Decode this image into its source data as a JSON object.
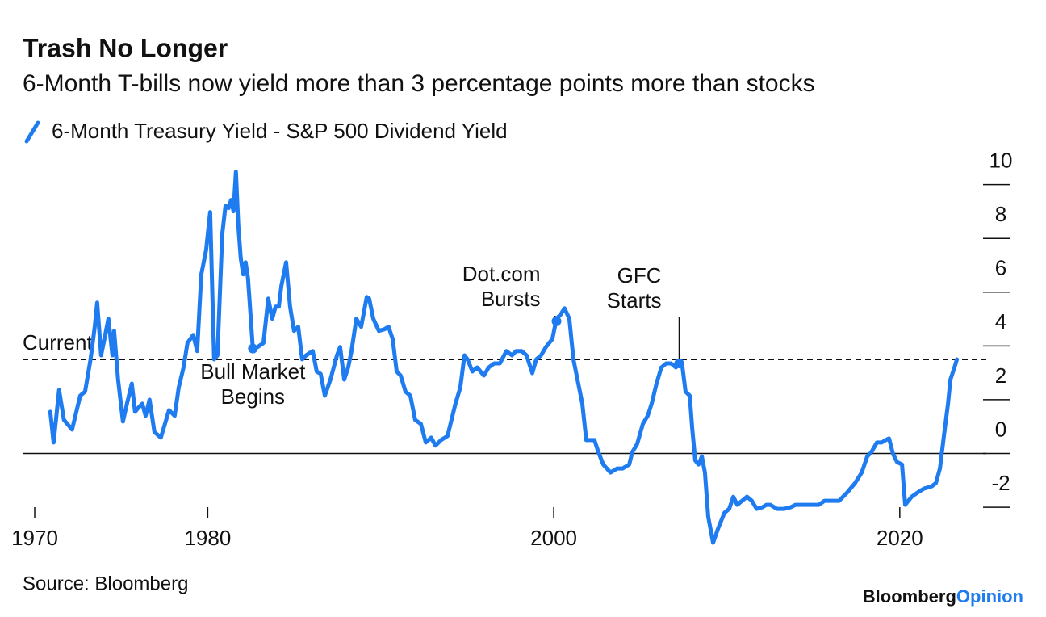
{
  "chart_data": {
    "type": "line",
    "title": "Trash No Longer",
    "subtitle": "6-Month T-bills now yield more than 3 percentage points more than stocks",
    "source": "Source: Bloomberg",
    "brand": [
      "Bloomberg",
      "Opinion"
    ],
    "xlim": [
      1969.3,
      2025
    ],
    "xticks": [
      1970,
      1980,
      2000,
      2020
    ],
    "ylim": [
      -3.5,
      10.5
    ],
    "yticks": [
      -2,
      0,
      2,
      4,
      6,
      8,
      10
    ],
    "reference_line": {
      "label": "Current",
      "value": 3.5
    },
    "x": [
      1970.9,
      1971.09,
      1971.41,
      1971.69,
      1972.16,
      1972.63,
      1972.91,
      1973.23,
      1973.47,
      1973.61,
      1973.84,
      1974.03,
      1974.26,
      1974.49,
      1974.59,
      1974.82,
      1975.1,
      1975.33,
      1975.61,
      1975.8,
      1975.99,
      1976.22,
      1976.41,
      1976.64,
      1976.92,
      1977.29,
      1977.76,
      1978.09,
      1978.32,
      1978.6,
      1978.83,
      1979.16,
      1979.39,
      1979.63,
      1979.91,
      1980.14,
      1980.37,
      1980.56,
      1980.84,
      1981.03,
      1981.21,
      1981.35,
      1981.49,
      1981.63,
      1981.77,
      1981.91,
      1982.05,
      1982.19,
      1982.33,
      1982.61,
      1982.89,
      1983.22,
      1983.5,
      1983.73,
      1983.92,
      1984.11,
      1984.25,
      1984.53,
      1984.76,
      1984.99,
      1985.23,
      1985.46,
      1985.69,
      1986.07,
      1986.3,
      1986.53,
      1986.77,
      1987.09,
      1987.47,
      1987.65,
      1987.89,
      1988.12,
      1988.31,
      1988.59,
      1988.87,
      1989.19,
      1989.33,
      1989.57,
      1989.89,
      1990.22,
      1990.45,
      1990.69,
      1990.92,
      1991.15,
      1991.43,
      1991.71,
      1991.99,
      1992.32,
      1992.6,
      1992.92,
      1993.16,
      1993.49,
      1993.86,
      1994.09,
      1994.32,
      1994.6,
      1994.84,
      1995.02,
      1995.3,
      1995.58,
      1995.96,
      1996.24,
      1996.56,
      1996.89,
      1997.26,
      1997.59,
      1997.82,
      1998.15,
      1998.43,
      1998.76,
      1998.99,
      1999.27,
      1999.55,
      1999.92,
      2000.16,
      2000.39,
      2000.62,
      2000.9,
      2001.14,
      2001.42,
      2001.65,
      2001.88,
      2002.35,
      2002.58,
      2002.86,
      2003.28,
      2003.66,
      2003.98,
      2004.36,
      2004.54,
      2004.82,
      2005.15,
      2005.43,
      2005.66,
      2005.94,
      2006.22,
      2006.5,
      2006.78,
      2007.06,
      2007.3,
      2007.44,
      2007.62,
      2007.86,
      2008.0,
      2008.18,
      2008.37,
      2008.56,
      2008.74,
      2008.93,
      2009.21,
      2009.49,
      2009.86,
      2010.14,
      2010.38,
      2010.61,
      2010.89,
      2011.17,
      2011.45,
      2011.73,
      2012.06,
      2012.29,
      2012.52,
      2012.9,
      2013.32,
      2013.69,
      2013.97,
      2014.3,
      2014.62,
      2015.0,
      2015.32,
      2015.65,
      2016.02,
      2016.49,
      2016.95,
      2017.42,
      2017.8,
      2018.12,
      2018.36,
      2018.68,
      2018.96,
      2019.19,
      2019.38,
      2019.61,
      2019.85,
      2020.13,
      2020.31,
      2020.69,
      2021.01,
      2021.39,
      2021.85,
      2022.09,
      2022.32,
      2022.55,
      2022.79,
      2022.93,
      2023.16,
      2023.3
    ],
    "series": [
      {
        "name": "6-Month Treasury Yield - S&P 500 Dividend Yield",
        "color": "#1f7cf0",
        "values": [
          1.55,
          0.41,
          2.36,
          1.25,
          0.89,
          2.15,
          2.3,
          3.5,
          4.71,
          5.61,
          3.65,
          4.26,
          5.01,
          3.65,
          4.56,
          2.75,
          1.19,
          1.85,
          2.6,
          1.55,
          1.7,
          1.85,
          1.4,
          2.0,
          0.8,
          0.59,
          1.61,
          1.4,
          2.45,
          3.2,
          4.11,
          4.41,
          3.81,
          6.66,
          7.57,
          8.98,
          3.5,
          3.65,
          8.17,
          9.22,
          9.13,
          9.43,
          9.01,
          10.48,
          8.47,
          7.26,
          6.66,
          7.11,
          6.51,
          3.9,
          3.96,
          4.11,
          5.76,
          5.01,
          5.46,
          5.46,
          6.21,
          7.11,
          5.46,
          4.56,
          4.71,
          3.5,
          3.65,
          3.81,
          3.05,
          2.96,
          2.15,
          2.75,
          3.65,
          3.96,
          2.75,
          3.2,
          3.81,
          5.01,
          4.71,
          5.82,
          5.76,
          5.01,
          4.56,
          4.62,
          4.71,
          4.26,
          3.05,
          2.9,
          2.3,
          2.15,
          1.25,
          1.1,
          0.41,
          0.59,
          0.29,
          0.5,
          0.65,
          1.25,
          1.85,
          2.45,
          3.65,
          3.5,
          3.05,
          3.2,
          2.9,
          3.2,
          3.35,
          3.35,
          3.81,
          3.65,
          3.81,
          3.81,
          3.65,
          2.99,
          3.5,
          3.65,
          3.96,
          4.26,
          5.01,
          5.16,
          5.4,
          5.01,
          3.5,
          2.6,
          1.85,
          0.5,
          0.5,
          0.05,
          -0.41,
          -0.71,
          -0.56,
          -0.56,
          -0.41,
          0.05,
          0.35,
          1.1,
          1.4,
          1.85,
          2.6,
          3.2,
          3.35,
          3.35,
          3.2,
          3.41,
          3.2,
          2.3,
          2.15,
          0.95,
          -0.26,
          -0.41,
          -0.11,
          -0.71,
          -2.36,
          -3.32,
          -2.81,
          -2.21,
          -2.06,
          -1.61,
          -1.91,
          -1.76,
          -1.61,
          -1.76,
          -2.06,
          -2.0,
          -1.91,
          -1.91,
          -2.06,
          -2.06,
          -2.0,
          -1.91,
          -1.91,
          -1.91,
          -1.91,
          -1.91,
          -1.76,
          -1.76,
          -1.76,
          -1.46,
          -1.1,
          -0.71,
          -0.11,
          0.05,
          0.41,
          0.41,
          0.5,
          0.56,
          -0.02,
          -0.32,
          -0.41,
          -1.91,
          -1.61,
          -1.46,
          -1.31,
          -1.22,
          -1.1,
          -0.56,
          0.65,
          1.85,
          2.75,
          3.2,
          3.5
        ]
      }
    ],
    "annotations": [
      {
        "lines": [
          "Bull Market",
          "Begins"
        ],
        "x": 1982.61,
        "y": 3.9
      },
      {
        "lines": [
          "Dot.com",
          "Bursts"
        ],
        "x": 2000.16,
        "y": 4.92
      },
      {
        "lines": [
          "GFC",
          "Starts"
        ],
        "x": 2007.25,
        "y": 3.35
      }
    ]
  }
}
